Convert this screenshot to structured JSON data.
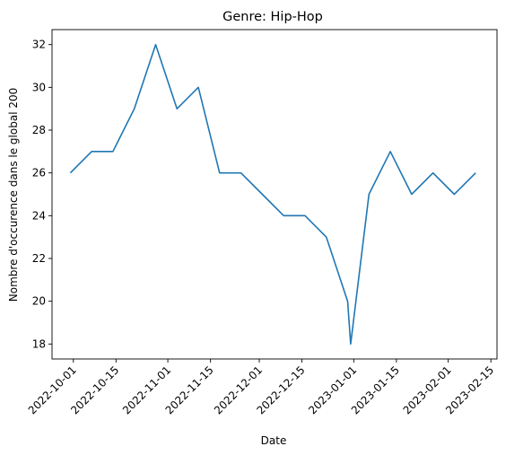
{
  "chart_data": {
    "type": "line",
    "title": "Genre:  Hip-Hop",
    "xlabel": "Date",
    "ylabel": "Nombre d'occurence dans le global 200",
    "x_ticks": [
      "2022-10-01",
      "2022-10-15",
      "2022-11-01",
      "2022-11-15",
      "2022-12-01",
      "2022-12-15",
      "2023-01-01",
      "2023-01-15",
      "2023-02-01",
      "2023-02-15"
    ],
    "y_ticks": [
      "18",
      "20",
      "22",
      "24",
      "26",
      "28",
      "30",
      "32"
    ],
    "ylim": [
      17.3,
      32.7
    ],
    "xlim": [
      "2022-09-24",
      "2023-02-17"
    ],
    "grid": false,
    "colors": {
      "line": "#1f77b4"
    },
    "series": [
      {
        "x": [
          "2022-09-30",
          "2022-10-07",
          "2022-10-14",
          "2022-10-21",
          "2022-10-28",
          "2022-11-04",
          "2022-11-11",
          "2022-11-18",
          "2022-11-25",
          "2022-12-02",
          "2022-12-09",
          "2022-12-16",
          "2022-12-23",
          "2022-12-30",
          "2022-12-31",
          "2023-01-06",
          "2023-01-13",
          "2023-01-20",
          "2023-01-27",
          "2023-02-03",
          "2023-02-10"
        ],
        "values": [
          26,
          27,
          27,
          29,
          32,
          29,
          30,
          26,
          26,
          25,
          24,
          24,
          23,
          20,
          18,
          25,
          27,
          25,
          26,
          25,
          26
        ]
      }
    ]
  }
}
